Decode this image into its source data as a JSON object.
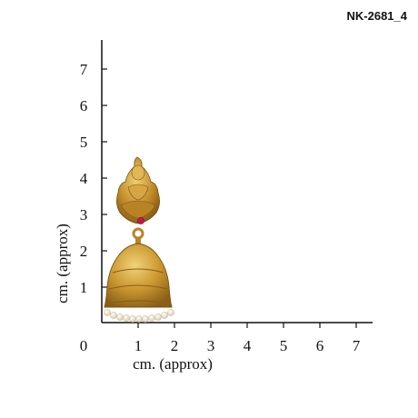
{
  "product": {
    "code": "NK-2681_4"
  },
  "scale": {
    "y_axis_title": "cm. (approx)",
    "x_axis_title": "cm. (approx)",
    "origin_label": "0",
    "y_ticks": [
      "1",
      "2",
      "3",
      "4",
      "5",
      "6",
      "7"
    ],
    "x_ticks": [
      "1",
      "2",
      "3",
      "4",
      "5",
      "6",
      "7"
    ]
  },
  "jewelry": {
    "item": "jhumka-earring",
    "metal_color": "#c9962e",
    "stone_color": "#c0184a",
    "pearl_color": "#f3ecd8"
  }
}
